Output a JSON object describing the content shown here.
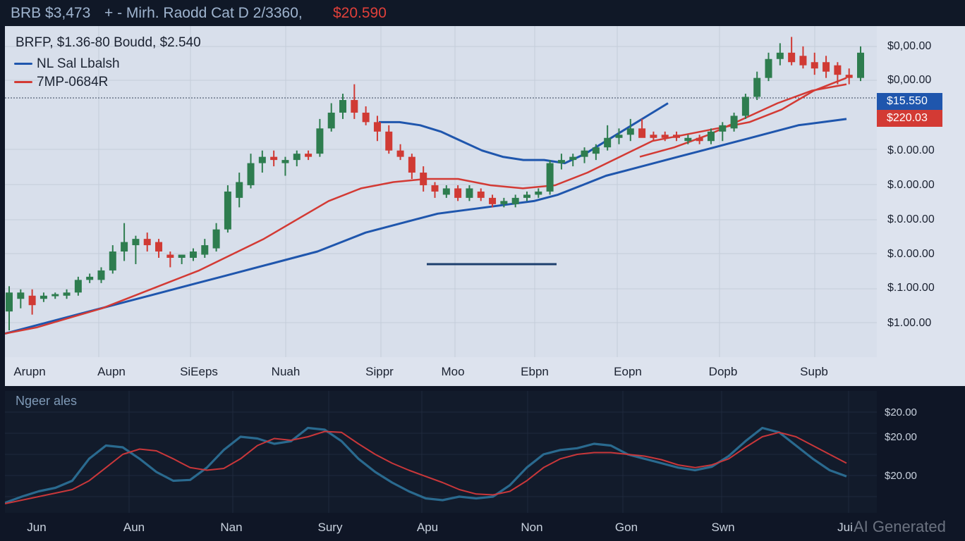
{
  "header": {
    "parts": [
      {
        "text": "BRB $3,473",
        "color": "#9fb4cf"
      },
      {
        "text": "+ - Mirh. Raodd Cat D 2/3360,",
        "color": "#9fb4cf"
      },
      {
        "text": "$20.590",
        "color": "#e0403a"
      }
    ]
  },
  "main_header": "BRFP, $1.36-80  Boudd, $2.540",
  "legend": [
    {
      "label": "NL Sal Lbalsh",
      "color": "#1f56ad"
    },
    {
      "label": "7MP-0684R",
      "color": "#d33a34"
    }
  ],
  "price_tags": [
    {
      "label": "$15.550",
      "color": "#1f56ad"
    },
    {
      "label": "$220.03",
      "color": "#d33a34"
    }
  ],
  "colors": {
    "up": "#2e7d4f",
    "down": "#d03a34",
    "blue_line": "#1f56ad",
    "red_line": "#d33a34"
  },
  "chart_data": [
    {
      "type": "candlestick",
      "title": "BRFP, $1.36-80  Boudd, $2.540",
      "x_tick_labels": [
        "Arupn",
        "Aupn",
        "SiEeps",
        "Nuah",
        "Sippr",
        "Moo",
        "Ebpn",
        "Eopn",
        "Dopb",
        "Supb"
      ],
      "y_tick_labels": [
        "$0,00.00",
        "$0,00.00",
        "$.0.00.00",
        "$.0.00.00",
        "$.0.00.00",
        "$.0.00.00",
        "$.1.00.00",
        "$1.00.00"
      ],
      "ylim": [
        0,
        100
      ],
      "candles": [
        {
          "o": 8,
          "h": 16,
          "l": 2,
          "c": 14
        },
        {
          "o": 12,
          "h": 15,
          "l": 9,
          "c": 14
        },
        {
          "o": 13,
          "h": 15,
          "l": 7,
          "c": 10
        },
        {
          "o": 12,
          "h": 14,
          "l": 11,
          "c": 13
        },
        {
          "o": 13,
          "h": 14,
          "l": 12,
          "c": 13.5
        },
        {
          "o": 13,
          "h": 15,
          "l": 12,
          "c": 14
        },
        {
          "o": 14,
          "h": 19,
          "l": 13,
          "c": 18
        },
        {
          "o": 18,
          "h": 20,
          "l": 17,
          "c": 19
        },
        {
          "o": 18,
          "h": 22,
          "l": 17,
          "c": 21
        },
        {
          "o": 21,
          "h": 29,
          "l": 20,
          "c": 27
        },
        {
          "o": 27,
          "h": 36,
          "l": 24,
          "c": 30
        },
        {
          "o": 29,
          "h": 32,
          "l": 23,
          "c": 31
        },
        {
          "o": 31,
          "h": 33,
          "l": 27,
          "c": 29
        },
        {
          "o": 30,
          "h": 31,
          "l": 25,
          "c": 27
        },
        {
          "o": 26,
          "h": 27,
          "l": 22,
          "c": 25
        },
        {
          "o": 25,
          "h": 26,
          "l": 23,
          "c": 26
        },
        {
          "o": 25,
          "h": 28,
          "l": 24,
          "c": 27
        },
        {
          "o": 26,
          "h": 31,
          "l": 25,
          "c": 29
        },
        {
          "o": 28,
          "h": 36,
          "l": 27,
          "c": 34
        },
        {
          "o": 34,
          "h": 48,
          "l": 33,
          "c": 46
        },
        {
          "o": 44,
          "h": 52,
          "l": 41,
          "c": 49
        },
        {
          "o": 48,
          "h": 58,
          "l": 47,
          "c": 55
        },
        {
          "o": 55,
          "h": 59,
          "l": 52,
          "c": 57
        },
        {
          "o": 57,
          "h": 59,
          "l": 54,
          "c": 56
        },
        {
          "o": 55,
          "h": 57,
          "l": 51,
          "c": 56
        },
        {
          "o": 56,
          "h": 59,
          "l": 54,
          "c": 58
        },
        {
          "o": 58,
          "h": 59,
          "l": 56,
          "c": 57
        },
        {
          "o": 58,
          "h": 69,
          "l": 57,
          "c": 66
        },
        {
          "o": 66,
          "h": 74,
          "l": 65,
          "c": 71
        },
        {
          "o": 71,
          "h": 77,
          "l": 69,
          "c": 75
        },
        {
          "o": 75,
          "h": 80,
          "l": 69,
          "c": 71
        },
        {
          "o": 71,
          "h": 73,
          "l": 67,
          "c": 68
        },
        {
          "o": 68,
          "h": 70,
          "l": 62,
          "c": 65
        },
        {
          "o": 65,
          "h": 67,
          "l": 58,
          "c": 59
        },
        {
          "o": 59,
          "h": 61,
          "l": 56,
          "c": 57
        },
        {
          "o": 57,
          "h": 58,
          "l": 50,
          "c": 52
        },
        {
          "o": 52,
          "h": 54,
          "l": 46,
          "c": 48
        },
        {
          "o": 48,
          "h": 49,
          "l": 44,
          "c": 46
        },
        {
          "o": 45,
          "h": 48,
          "l": 44,
          "c": 47
        },
        {
          "o": 47,
          "h": 48,
          "l": 43,
          "c": 44
        },
        {
          "o": 44,
          "h": 48,
          "l": 43,
          "c": 47
        },
        {
          "o": 46,
          "h": 47,
          "l": 43,
          "c": 44
        },
        {
          "o": 44,
          "h": 45,
          "l": 41,
          "c": 42
        },
        {
          "o": 42,
          "h": 44,
          "l": 41,
          "c": 43
        },
        {
          "o": 42,
          "h": 45,
          "l": 41,
          "c": 44
        },
        {
          "o": 44,
          "h": 46,
          "l": 43,
          "c": 45
        },
        {
          "o": 45,
          "h": 47,
          "l": 44,
          "c": 46
        },
        {
          "o": 46,
          "h": 56,
          "l": 45,
          "c": 55
        },
        {
          "o": 55,
          "h": 58,
          "l": 53,
          "c": 56
        },
        {
          "o": 56,
          "h": 58,
          "l": 54,
          "c": 57
        },
        {
          "o": 57,
          "h": 60,
          "l": 55,
          "c": 59
        },
        {
          "o": 58,
          "h": 61,
          "l": 56,
          "c": 60
        },
        {
          "o": 60,
          "h": 67,
          "l": 59,
          "c": 63
        },
        {
          "o": 63,
          "h": 66,
          "l": 61,
          "c": 64
        },
        {
          "o": 64,
          "h": 69,
          "l": 62,
          "c": 66
        },
        {
          "o": 66,
          "h": 69,
          "l": 64,
          "c": 63
        },
        {
          "o": 64,
          "h": 65,
          "l": 62,
          "c": 63
        },
        {
          "o": 64,
          "h": 65,
          "l": 62,
          "c": 63
        },
        {
          "o": 64,
          "h": 65,
          "l": 62,
          "c": 63
        },
        {
          "o": 62,
          "h": 64,
          "l": 61,
          "c": 63
        },
        {
          "o": 63,
          "h": 64,
          "l": 61,
          "c": 62
        },
        {
          "o": 62,
          "h": 66,
          "l": 61,
          "c": 65
        },
        {
          "o": 65,
          "h": 68,
          "l": 62,
          "c": 67
        },
        {
          "o": 66,
          "h": 71,
          "l": 65,
          "c": 70
        },
        {
          "o": 70,
          "h": 77,
          "l": 69,
          "c": 76
        },
        {
          "o": 76,
          "h": 84,
          "l": 75,
          "c": 82
        },
        {
          "o": 82,
          "h": 90,
          "l": 81,
          "c": 88
        },
        {
          "o": 88,
          "h": 93,
          "l": 86,
          "c": 90
        },
        {
          "o": 90,
          "h": 95,
          "l": 86,
          "c": 87
        },
        {
          "o": 89,
          "h": 92,
          "l": 85,
          "c": 86
        },
        {
          "o": 87,
          "h": 90,
          "l": 83,
          "c": 85
        },
        {
          "o": 87,
          "h": 89,
          "l": 82,
          "c": 84
        },
        {
          "o": 86,
          "h": 87,
          "l": 80,
          "c": 83
        },
        {
          "o": 83,
          "h": 85,
          "l": 80,
          "c": 82
        },
        {
          "o": 82,
          "h": 92,
          "l": 81,
          "c": 90
        }
      ],
      "series": [
        {
          "name": "NL Sal Lbalsh",
          "values": [
            1,
            3,
            5,
            7,
            9,
            11,
            13,
            15,
            17,
            19,
            21,
            23,
            25,
            27,
            30,
            33,
            35,
            37,
            39,
            40,
            41,
            42,
            43,
            45,
            48,
            51,
            53,
            55,
            57,
            59,
            61,
            63,
            65,
            67,
            68,
            69
          ]
        },
        {
          "name": "7MP-0684R",
          "values": [
            1,
            3,
            6,
            9,
            13,
            17,
            21,
            26,
            31,
            37,
            43,
            47,
            49,
            50,
            50,
            48,
            47,
            48,
            52,
            57,
            62,
            64,
            66,
            68,
            72,
            78,
            82
          ]
        },
        {
          "name": "",
          "values": [
            68,
            68,
            67,
            65,
            62,
            59,
            57,
            56,
            56,
            55,
            58,
            62,
            66,
            70,
            74
          ]
        },
        {
          "name": "",
          "values": [
            57,
            60,
            64,
            69,
            74,
            78,
            80
          ]
        }
      ]
    },
    {
      "type": "line",
      "title": "Ngeer ales",
      "x_tick_labels": [
        "Jun",
        "Aun",
        "Nan",
        "Sury",
        "Apu",
        "Non",
        "Gon",
        "Swn",
        "Jui"
      ],
      "y_tick_labels": [
        "$20.00",
        "$20.00",
        "$20.00"
      ],
      "ylim": [
        0,
        100
      ],
      "series": [
        {
          "name": "",
          "values": [
            5,
            12,
            18,
            22,
            30,
            55,
            70,
            68,
            55,
            40,
            30,
            31,
            45,
            65,
            80,
            78,
            72,
            75,
            90,
            88,
            75,
            55,
            40,
            28,
            18,
            10,
            8,
            12,
            10,
            12,
            25,
            45,
            60,
            65,
            67,
            72,
            70,
            60,
            55,
            50,
            45,
            42,
            46,
            58,
            75,
            90,
            85,
            70,
            55,
            42,
            35
          ]
        },
        {
          "name": "",
          "values": [
            4,
            8,
            12,
            16,
            20,
            30,
            45,
            60,
            66,
            64,
            55,
            45,
            42,
            44,
            55,
            70,
            78,
            76,
            80,
            86,
            85,
            72,
            60,
            50,
            42,
            35,
            28,
            20,
            15,
            14,
            18,
            30,
            45,
            55,
            60,
            62,
            62,
            60,
            58,
            54,
            48,
            45,
            48,
            55,
            68,
            80,
            85,
            80,
            70,
            60,
            50
          ]
        }
      ]
    }
  ],
  "indicator": {
    "title": "Ngeer ales"
  },
  "watermark": "AI Generated"
}
